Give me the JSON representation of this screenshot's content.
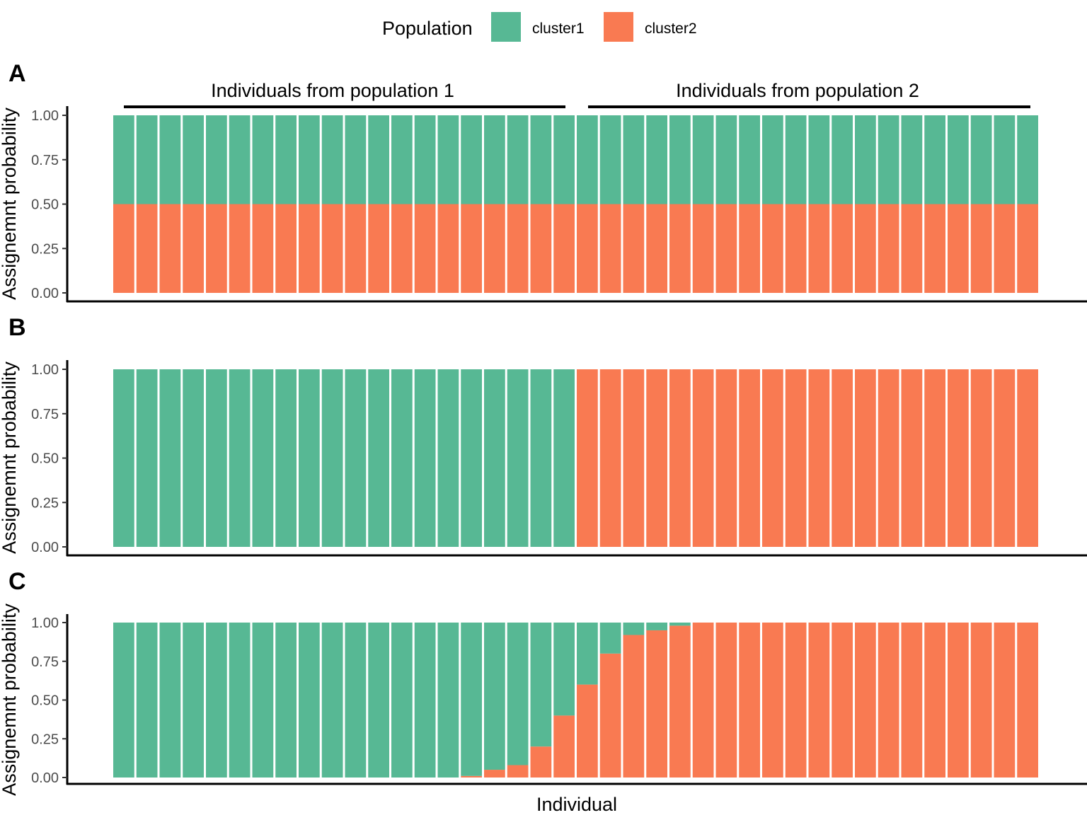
{
  "legend": {
    "title": "Population",
    "items": [
      {
        "label": "cluster1",
        "color": "#57B894"
      },
      {
        "label": "cluster2",
        "color": "#F97A52"
      }
    ]
  },
  "x_axis_title": "Individual",
  "chart_data": [
    {
      "type": "bar",
      "stacked": true,
      "panel_label": "A",
      "ylabel": "Assignemnt probability",
      "ylim": [
        0,
        1
      ],
      "yticks": [
        "0.00",
        "0.25",
        "0.50",
        "0.75",
        "1.00"
      ],
      "group_labels": [
        "Individuals from population 1",
        "Individuals from population 2"
      ],
      "n_individuals": 40,
      "series": [
        {
          "name": "cluster2",
          "values": [
            0.5,
            0.5,
            0.5,
            0.5,
            0.5,
            0.5,
            0.5,
            0.5,
            0.5,
            0.5,
            0.5,
            0.5,
            0.5,
            0.5,
            0.5,
            0.5,
            0.5,
            0.5,
            0.5,
            0.5,
            0.5,
            0.5,
            0.5,
            0.5,
            0.5,
            0.5,
            0.5,
            0.5,
            0.5,
            0.5,
            0.5,
            0.5,
            0.5,
            0.5,
            0.5,
            0.5,
            0.5,
            0.5,
            0.5,
            0.5
          ]
        },
        {
          "name": "cluster1",
          "values": [
            0.5,
            0.5,
            0.5,
            0.5,
            0.5,
            0.5,
            0.5,
            0.5,
            0.5,
            0.5,
            0.5,
            0.5,
            0.5,
            0.5,
            0.5,
            0.5,
            0.5,
            0.5,
            0.5,
            0.5,
            0.5,
            0.5,
            0.5,
            0.5,
            0.5,
            0.5,
            0.5,
            0.5,
            0.5,
            0.5,
            0.5,
            0.5,
            0.5,
            0.5,
            0.5,
            0.5,
            0.5,
            0.5,
            0.5,
            0.5
          ]
        }
      ]
    },
    {
      "type": "bar",
      "stacked": true,
      "panel_label": "B",
      "ylabel": "Assignemnt probability",
      "ylim": [
        0,
        1
      ],
      "yticks": [
        "0.00",
        "0.25",
        "0.50",
        "0.75",
        "1.00"
      ],
      "n_individuals": 40,
      "series": [
        {
          "name": "cluster2",
          "values": [
            0,
            0,
            0,
            0,
            0,
            0,
            0,
            0,
            0,
            0,
            0,
            0,
            0,
            0,
            0,
            0,
            0,
            0,
            0,
            0,
            1,
            1,
            1,
            1,
            1,
            1,
            1,
            1,
            1,
            1,
            1,
            1,
            1,
            1,
            1,
            1,
            1,
            1,
            1,
            1
          ]
        },
        {
          "name": "cluster1",
          "values": [
            1,
            1,
            1,
            1,
            1,
            1,
            1,
            1,
            1,
            1,
            1,
            1,
            1,
            1,
            1,
            1,
            1,
            1,
            1,
            1,
            0,
            0,
            0,
            0,
            0,
            0,
            0,
            0,
            0,
            0,
            0,
            0,
            0,
            0,
            0,
            0,
            0,
            0,
            0,
            0
          ]
        }
      ]
    },
    {
      "type": "bar",
      "stacked": true,
      "panel_label": "C",
      "ylabel": "Assignemnt probability",
      "ylim": [
        0,
        1
      ],
      "yticks": [
        "0.00",
        "0.25",
        "0.50",
        "0.75",
        "1.00"
      ],
      "n_individuals": 40,
      "series": [
        {
          "name": "cluster2",
          "values": [
            0,
            0,
            0,
            0,
            0,
            0,
            0,
            0,
            0,
            0,
            0,
            0,
            0,
            0,
            0,
            0.01,
            0.05,
            0.08,
            0.2,
            0.4,
            0.6,
            0.8,
            0.92,
            0.95,
            0.98,
            1,
            1,
            1,
            1,
            1,
            1,
            1,
            1,
            1,
            1,
            1,
            1,
            1,
            1,
            1
          ]
        },
        {
          "name": "cluster1",
          "values": [
            1,
            1,
            1,
            1,
            1,
            1,
            1,
            1,
            1,
            1,
            1,
            1,
            1,
            1,
            1,
            0.99,
            0.95,
            0.92,
            0.8,
            0.6,
            0.4,
            0.2,
            0.08,
            0.05,
            0.02,
            0,
            0,
            0,
            0,
            0,
            0,
            0,
            0,
            0,
            0,
            0,
            0,
            0,
            0,
            0
          ]
        }
      ]
    }
  ]
}
